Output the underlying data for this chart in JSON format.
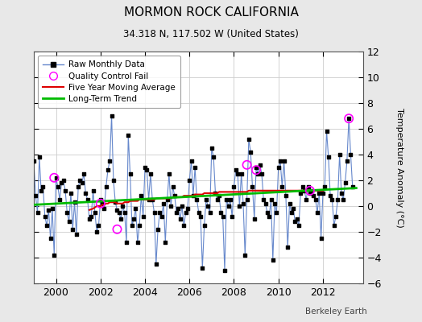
{
  "title": "MORMON ROCK CALIFORNIA",
  "subtitle": "34.318 N, 117.502 W (United States)",
  "ylabel": "Temperature Anomaly (°C)",
  "credit": "Berkeley Earth",
  "xlim": [
    1999.0,
    2013.8
  ],
  "ylim": [
    -6,
    12
  ],
  "yticks": [
    -6,
    -4,
    -2,
    0,
    2,
    4,
    6,
    8,
    10,
    12
  ],
  "xticks": [
    2000,
    2002,
    2004,
    2006,
    2008,
    2010,
    2012
  ],
  "bg_color": "#e8e8e8",
  "plot_bg_color": "#ffffff",
  "raw_color": "#6688cc",
  "dot_color": "#000000",
  "ma_color": "#dd0000",
  "trend_color": "#00bb00",
  "qc_color": "#ff00ff",
  "grid_color": "#cccccc",
  "raw_monthly": [
    [
      1999.0,
      3.5
    ],
    [
      1999.083,
      0.8
    ],
    [
      1999.167,
      -0.5
    ],
    [
      1999.25,
      3.8
    ],
    [
      1999.333,
      1.2
    ],
    [
      1999.417,
      1.5
    ],
    [
      1999.5,
      -0.8
    ],
    [
      1999.583,
      -1.5
    ],
    [
      1999.667,
      -0.3
    ],
    [
      1999.75,
      -2.5
    ],
    [
      1999.833,
      -0.2
    ],
    [
      1999.917,
      -3.8
    ],
    [
      2000.0,
      2.2
    ],
    [
      2000.083,
      1.5
    ],
    [
      2000.167,
      0.5
    ],
    [
      2000.25,
      1.8
    ],
    [
      2000.333,
      2.0
    ],
    [
      2000.417,
      1.2
    ],
    [
      2000.5,
      -0.5
    ],
    [
      2000.583,
      -1.2
    ],
    [
      2000.667,
      1.0
    ],
    [
      2000.75,
      -1.8
    ],
    [
      2000.833,
      0.3
    ],
    [
      2000.917,
      -2.2
    ],
    [
      2001.0,
      1.5
    ],
    [
      2001.083,
      2.0
    ],
    [
      2001.167,
      1.8
    ],
    [
      2001.25,
      2.5
    ],
    [
      2001.333,
      1.0
    ],
    [
      2001.417,
      0.5
    ],
    [
      2001.5,
      -1.0
    ],
    [
      2001.583,
      -0.8
    ],
    [
      2001.667,
      1.2
    ],
    [
      2001.75,
      -0.5
    ],
    [
      2001.833,
      -2.0
    ],
    [
      2001.917,
      -1.5
    ],
    [
      2002.0,
      0.5
    ],
    [
      2002.083,
      0.2
    ],
    [
      2002.167,
      -0.2
    ],
    [
      2002.25,
      1.5
    ],
    [
      2002.333,
      2.8
    ],
    [
      2002.417,
      3.5
    ],
    [
      2002.5,
      7.0
    ],
    [
      2002.583,
      2.0
    ],
    [
      2002.667,
      0.3
    ],
    [
      2002.75,
      -0.3
    ],
    [
      2002.833,
      -0.5
    ],
    [
      2002.917,
      -1.0
    ],
    [
      2003.0,
      0.0
    ],
    [
      2003.083,
      -0.5
    ],
    [
      2003.167,
      -2.8
    ],
    [
      2003.25,
      5.5
    ],
    [
      2003.333,
      2.5
    ],
    [
      2003.417,
      -1.5
    ],
    [
      2003.5,
      -1.0
    ],
    [
      2003.583,
      -0.2
    ],
    [
      2003.667,
      -2.8
    ],
    [
      2003.75,
      -1.5
    ],
    [
      2003.833,
      0.8
    ],
    [
      2003.917,
      -0.8
    ],
    [
      2004.0,
      3.0
    ],
    [
      2004.083,
      2.8
    ],
    [
      2004.167,
      0.5
    ],
    [
      2004.25,
      2.5
    ],
    [
      2004.333,
      0.5
    ],
    [
      2004.417,
      -0.5
    ],
    [
      2004.5,
      -4.5
    ],
    [
      2004.583,
      -1.8
    ],
    [
      2004.667,
      -0.5
    ],
    [
      2004.75,
      -0.8
    ],
    [
      2004.833,
      0.2
    ],
    [
      2004.917,
      -2.8
    ],
    [
      2005.0,
      0.5
    ],
    [
      2005.083,
      2.5
    ],
    [
      2005.167,
      0.0
    ],
    [
      2005.25,
      1.5
    ],
    [
      2005.333,
      0.8
    ],
    [
      2005.417,
      -0.5
    ],
    [
      2005.5,
      -0.2
    ],
    [
      2005.583,
      -1.0
    ],
    [
      2005.667,
      0.0
    ],
    [
      2005.75,
      -1.5
    ],
    [
      2005.833,
      -0.5
    ],
    [
      2005.917,
      -0.2
    ],
    [
      2006.0,
      2.0
    ],
    [
      2006.083,
      3.5
    ],
    [
      2006.167,
      0.8
    ],
    [
      2006.25,
      3.0
    ],
    [
      2006.333,
      0.5
    ],
    [
      2006.417,
      -0.5
    ],
    [
      2006.5,
      -0.8
    ],
    [
      2006.583,
      -4.8
    ],
    [
      2006.667,
      -1.5
    ],
    [
      2006.75,
      0.5
    ],
    [
      2006.833,
      0.0
    ],
    [
      2006.917,
      -0.5
    ],
    [
      2007.0,
      4.5
    ],
    [
      2007.083,
      3.8
    ],
    [
      2007.167,
      1.0
    ],
    [
      2007.25,
      0.5
    ],
    [
      2007.333,
      0.8
    ],
    [
      2007.417,
      -0.5
    ],
    [
      2007.5,
      -0.8
    ],
    [
      2007.583,
      -5.0
    ],
    [
      2007.667,
      0.5
    ],
    [
      2007.75,
      0.0
    ],
    [
      2007.833,
      0.5
    ],
    [
      2007.917,
      -0.8
    ],
    [
      2008.0,
      1.5
    ],
    [
      2008.083,
      2.8
    ],
    [
      2008.167,
      2.5
    ],
    [
      2008.25,
      0.0
    ],
    [
      2008.333,
      2.5
    ],
    [
      2008.417,
      0.2
    ],
    [
      2008.5,
      -3.8
    ],
    [
      2008.583,
      0.5
    ],
    [
      2008.667,
      5.2
    ],
    [
      2008.75,
      4.2
    ],
    [
      2008.833,
      1.5
    ],
    [
      2008.917,
      -1.0
    ],
    [
      2009.0,
      3.0
    ],
    [
      2009.083,
      2.5
    ],
    [
      2009.167,
      3.2
    ],
    [
      2009.25,
      2.5
    ],
    [
      2009.333,
      0.5
    ],
    [
      2009.417,
      0.2
    ],
    [
      2009.5,
      -0.5
    ],
    [
      2009.583,
      -0.8
    ],
    [
      2009.667,
      0.5
    ],
    [
      2009.75,
      -4.2
    ],
    [
      2009.833,
      0.2
    ],
    [
      2009.917,
      -0.5
    ],
    [
      2010.0,
      3.0
    ],
    [
      2010.083,
      3.5
    ],
    [
      2010.167,
      1.5
    ],
    [
      2010.25,
      3.5
    ],
    [
      2010.333,
      0.8
    ],
    [
      2010.417,
      -3.2
    ],
    [
      2010.5,
      0.2
    ],
    [
      2010.583,
      -0.5
    ],
    [
      2010.667,
      -0.2
    ],
    [
      2010.75,
      -1.2
    ],
    [
      2010.833,
      -1.0
    ],
    [
      2010.917,
      -1.5
    ],
    [
      2011.0,
      1.0
    ],
    [
      2011.083,
      1.5
    ],
    [
      2011.167,
      1.2
    ],
    [
      2011.25,
      0.5
    ],
    [
      2011.333,
      1.5
    ],
    [
      2011.417,
      1.0
    ],
    [
      2011.5,
      1.2
    ],
    [
      2011.583,
      0.8
    ],
    [
      2011.667,
      0.5
    ],
    [
      2011.75,
      -0.5
    ],
    [
      2011.833,
      1.0
    ],
    [
      2011.917,
      -2.5
    ],
    [
      2012.0,
      1.0
    ],
    [
      2012.083,
      1.5
    ],
    [
      2012.167,
      5.8
    ],
    [
      2012.25,
      3.8
    ],
    [
      2012.333,
      0.8
    ],
    [
      2012.417,
      0.5
    ],
    [
      2012.5,
      -1.5
    ],
    [
      2012.583,
      -0.8
    ],
    [
      2012.667,
      0.5
    ],
    [
      2012.75,
      4.0
    ],
    [
      2012.833,
      1.0
    ],
    [
      2012.917,
      0.5
    ],
    [
      2013.0,
      1.8
    ],
    [
      2013.083,
      3.5
    ],
    [
      2013.167,
      6.8
    ],
    [
      2013.25,
      4.0
    ],
    [
      2013.333,
      1.5
    ]
  ],
  "qc_fail_points": [
    [
      1999.917,
      2.2
    ],
    [
      2002.0,
      0.2
    ],
    [
      2002.75,
      -1.8
    ],
    [
      2008.583,
      3.2
    ],
    [
      2009.0,
      2.8
    ],
    [
      2011.417,
      1.2
    ],
    [
      2013.167,
      6.8
    ]
  ],
  "moving_avg": [
    [
      2001.5,
      -0.3
    ],
    [
      2001.667,
      -0.2
    ],
    [
      2001.75,
      -0.1
    ],
    [
      2001.833,
      0.0
    ],
    [
      2002.0,
      0.0
    ],
    [
      2002.083,
      0.1
    ],
    [
      2002.167,
      0.1
    ],
    [
      2002.25,
      0.2
    ],
    [
      2002.333,
      0.2
    ],
    [
      2002.417,
      0.3
    ],
    [
      2002.5,
      0.3
    ],
    [
      2002.583,
      0.3
    ],
    [
      2002.667,
      0.3
    ],
    [
      2002.75,
      0.2
    ],
    [
      2002.833,
      0.2
    ],
    [
      2002.917,
      0.2
    ],
    [
      2003.0,
      0.2
    ],
    [
      2003.083,
      0.3
    ],
    [
      2003.167,
      0.3
    ],
    [
      2003.25,
      0.3
    ],
    [
      2003.333,
      0.4
    ],
    [
      2003.417,
      0.4
    ],
    [
      2003.5,
      0.4
    ],
    [
      2003.583,
      0.4
    ],
    [
      2003.667,
      0.4
    ],
    [
      2003.75,
      0.5
    ],
    [
      2003.833,
      0.5
    ],
    [
      2003.917,
      0.5
    ],
    [
      2004.0,
      0.5
    ],
    [
      2004.083,
      0.5
    ],
    [
      2004.167,
      0.5
    ],
    [
      2004.25,
      0.5
    ],
    [
      2004.333,
      0.5
    ],
    [
      2004.417,
      0.5
    ],
    [
      2004.5,
      0.6
    ],
    [
      2004.583,
      0.6
    ],
    [
      2004.667,
      0.6
    ],
    [
      2004.75,
      0.6
    ],
    [
      2004.833,
      0.6
    ],
    [
      2004.917,
      0.6
    ],
    [
      2005.0,
      0.6
    ],
    [
      2005.083,
      0.6
    ],
    [
      2005.167,
      0.6
    ],
    [
      2005.25,
      0.7
    ],
    [
      2005.333,
      0.7
    ],
    [
      2005.417,
      0.7
    ],
    [
      2005.5,
      0.7
    ],
    [
      2005.583,
      0.7
    ],
    [
      2005.667,
      0.7
    ],
    [
      2005.75,
      0.8
    ],
    [
      2005.833,
      0.8
    ],
    [
      2005.917,
      0.8
    ],
    [
      2006.0,
      0.8
    ],
    [
      2006.083,
      0.8
    ],
    [
      2006.167,
      0.8
    ],
    [
      2006.25,
      0.9
    ],
    [
      2006.333,
      0.9
    ],
    [
      2006.417,
      0.9
    ],
    [
      2006.5,
      0.9
    ],
    [
      2006.583,
      0.9
    ],
    [
      2006.667,
      1.0
    ],
    [
      2006.75,
      1.0
    ],
    [
      2006.833,
      1.0
    ],
    [
      2006.917,
      1.0
    ],
    [
      2007.0,
      1.0
    ],
    [
      2007.083,
      1.0
    ],
    [
      2007.167,
      1.0
    ],
    [
      2007.25,
      1.0
    ],
    [
      2007.333,
      1.1
    ],
    [
      2007.417,
      1.1
    ],
    [
      2007.5,
      1.1
    ],
    [
      2007.583,
      1.1
    ],
    [
      2007.667,
      1.1
    ],
    [
      2007.75,
      1.1
    ],
    [
      2007.833,
      1.1
    ],
    [
      2007.917,
      1.1
    ],
    [
      2008.0,
      1.1
    ],
    [
      2008.083,
      1.1
    ],
    [
      2008.167,
      1.1
    ],
    [
      2008.25,
      1.1
    ],
    [
      2008.333,
      1.1
    ],
    [
      2008.417,
      1.1
    ],
    [
      2008.5,
      1.1
    ],
    [
      2008.583,
      1.1
    ],
    [
      2008.667,
      1.2
    ],
    [
      2008.75,
      1.2
    ],
    [
      2008.833,
      1.2
    ],
    [
      2008.917,
      1.2
    ],
    [
      2009.0,
      1.2
    ],
    [
      2009.083,
      1.2
    ],
    [
      2009.167,
      1.2
    ],
    [
      2009.25,
      1.2
    ],
    [
      2009.333,
      1.2
    ],
    [
      2009.417,
      1.2
    ],
    [
      2009.5,
      1.2
    ],
    [
      2009.583,
      1.2
    ],
    [
      2009.667,
      1.2
    ],
    [
      2009.75,
      1.2
    ],
    [
      2009.833,
      1.2
    ],
    [
      2009.917,
      1.2
    ],
    [
      2010.0,
      1.2
    ],
    [
      2010.083,
      1.2
    ],
    [
      2010.167,
      1.2
    ],
    [
      2010.25,
      1.2
    ],
    [
      2010.333,
      1.2
    ],
    [
      2010.5,
      1.2
    ],
    [
      2010.667,
      1.2
    ],
    [
      2011.0,
      1.2
    ],
    [
      2011.25,
      1.2
    ],
    [
      2011.5,
      1.2
    ],
    [
      2011.75,
      1.2
    ],
    [
      2012.0,
      1.2
    ]
  ],
  "trend_x": [
    1999.0,
    2013.5
  ],
  "trend_y": [
    0.1,
    1.4
  ]
}
